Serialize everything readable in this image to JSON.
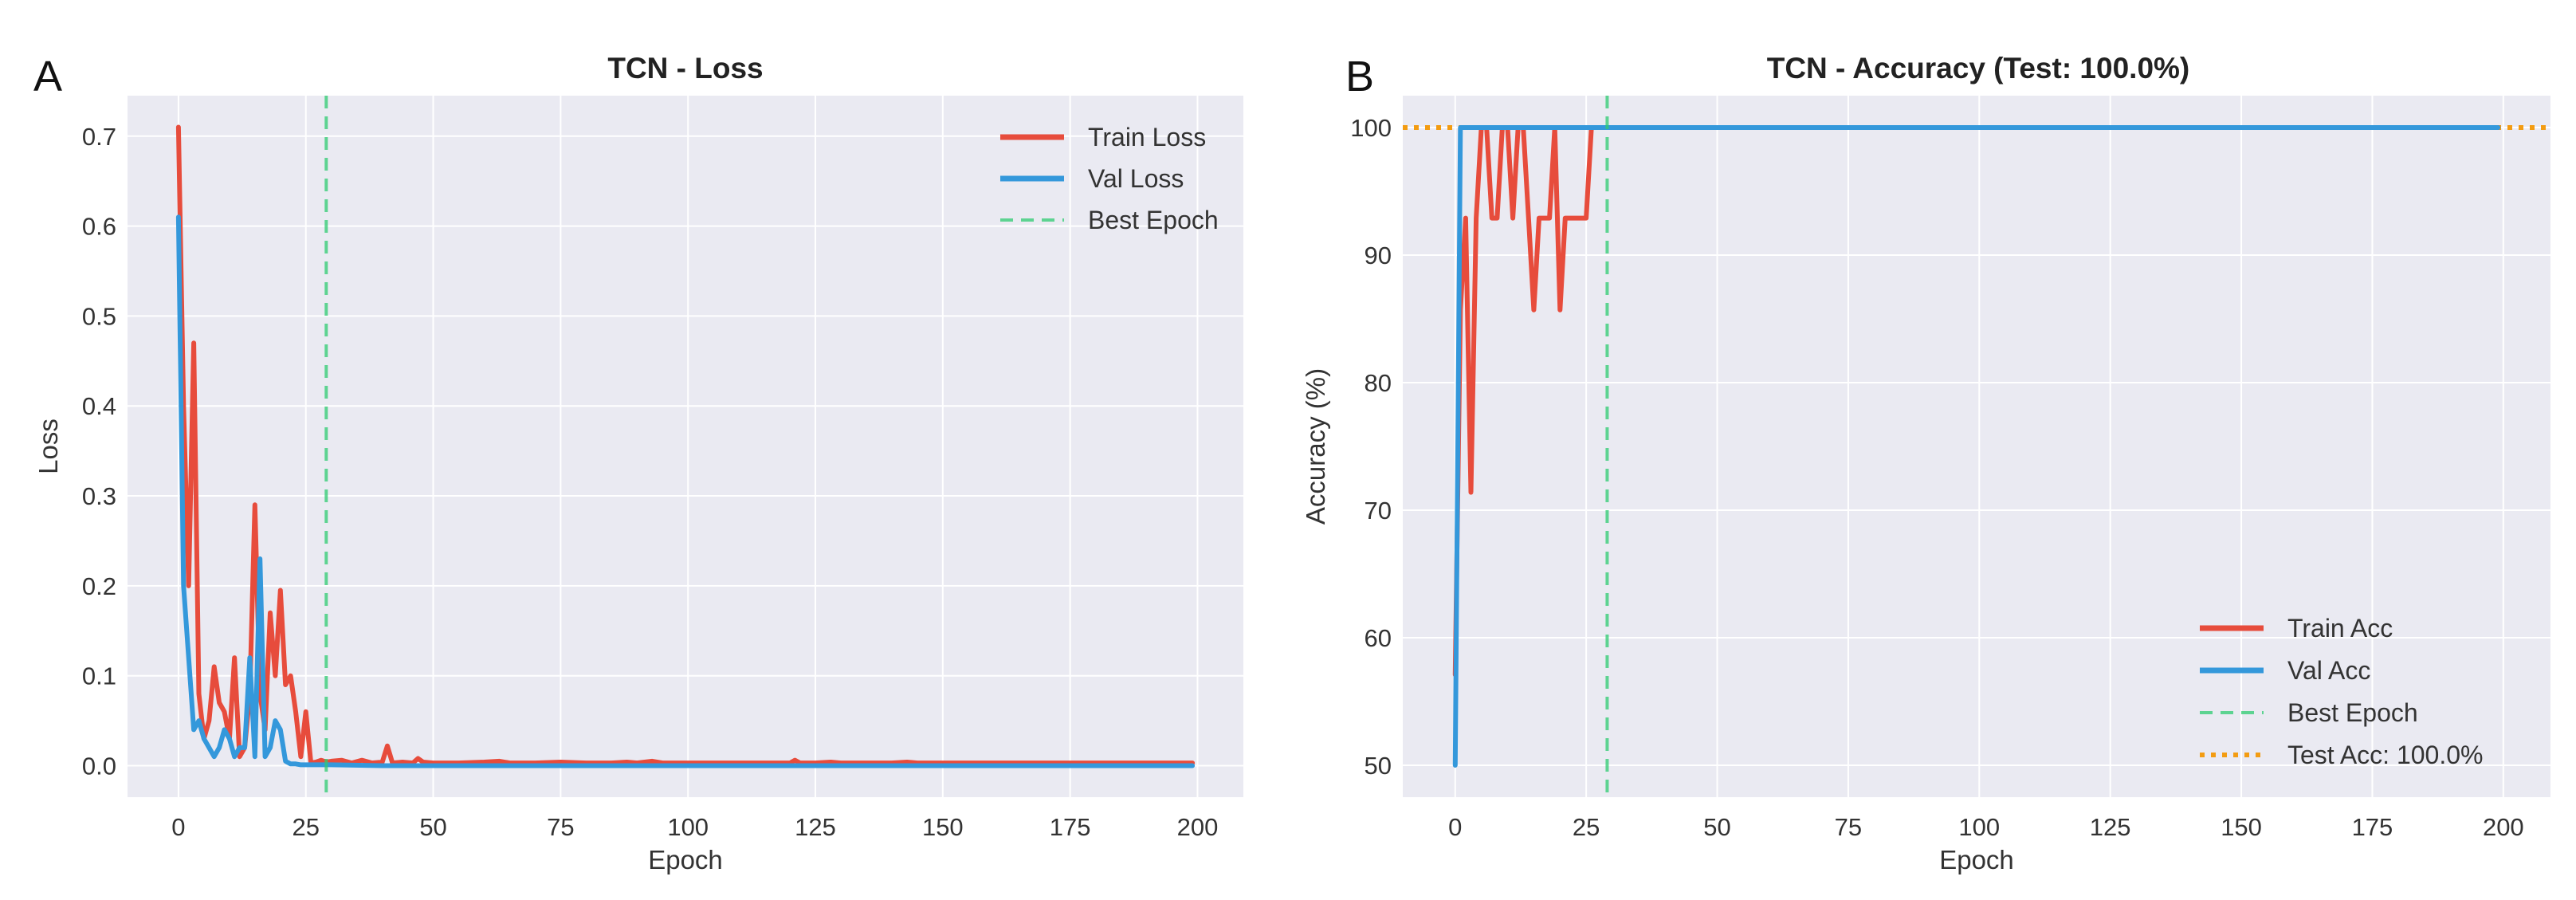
{
  "colors": {
    "train": "#e74c3c",
    "val": "#3498db",
    "best": "#2ecc71",
    "test": "#f39c12",
    "axes_bg": "#eaeaf2"
  },
  "chart_data": [
    {
      "panel": "A",
      "type": "line",
      "title": "TCN - Loss",
      "xlabel": "Epoch",
      "ylabel": "Loss",
      "xlim": [
        -10,
        209
      ],
      "ylim": [
        -0.035,
        0.745
      ],
      "xticks": [
        0,
        25,
        50,
        75,
        100,
        125,
        150,
        175,
        200
      ],
      "yticks": [
        0.0,
        0.1,
        0.2,
        0.3,
        0.4,
        0.5,
        0.6,
        0.7
      ],
      "ytick_labels": [
        "0.0",
        "0.1",
        "0.2",
        "0.3",
        "0.4",
        "0.5",
        "0.6",
        "0.7"
      ],
      "grid": true,
      "legend_position": "top-right",
      "best_epoch": 29,
      "legend": [
        "Train Loss",
        "Val Loss",
        "Best Epoch"
      ],
      "series": [
        {
          "name": "Train Loss",
          "color_key": "train",
          "x": [
            0,
            1,
            2,
            3,
            4,
            5,
            6,
            7,
            8,
            9,
            10,
            11,
            12,
            13,
            14,
            15,
            16,
            17,
            18,
            19,
            20,
            21,
            22,
            23,
            24,
            25,
            26,
            27,
            28,
            29,
            30,
            32,
            34,
            36,
            38,
            40,
            41,
            42,
            44,
            46,
            47,
            48,
            50,
            55,
            60,
            63,
            65,
            70,
            75,
            80,
            85,
            88,
            90,
            93,
            95,
            100,
            105,
            110,
            115,
            120,
            121,
            122,
            125,
            128,
            130,
            135,
            140,
            143,
            145,
            150,
            155,
            160,
            165,
            170,
            175,
            180,
            185,
            190,
            195,
            199
          ],
          "y": [
            0.71,
            0.4,
            0.2,
            0.47,
            0.08,
            0.03,
            0.05,
            0.11,
            0.07,
            0.06,
            0.03,
            0.12,
            0.01,
            0.02,
            0.08,
            0.29,
            0.08,
            0.04,
            0.17,
            0.1,
            0.195,
            0.09,
            0.1,
            0.06,
            0.01,
            0.06,
            0.003,
            0.004,
            0.006,
            0.004,
            0.005,
            0.006,
            0.003,
            0.006,
            0.003,
            0.004,
            0.022,
            0.003,
            0.004,
            0.003,
            0.008,
            0.004,
            0.003,
            0.003,
            0.004,
            0.005,
            0.003,
            0.003,
            0.004,
            0.003,
            0.003,
            0.004,
            0.003,
            0.005,
            0.003,
            0.003,
            0.003,
            0.003,
            0.003,
            0.003,
            0.006,
            0.003,
            0.003,
            0.004,
            0.003,
            0.003,
            0.003,
            0.004,
            0.003,
            0.003,
            0.003,
            0.003,
            0.003,
            0.003,
            0.003,
            0.003,
            0.003,
            0.003,
            0.003,
            0.003
          ]
        },
        {
          "name": "Val Loss",
          "color_key": "val",
          "x": [
            0,
            1,
            2,
            3,
            4,
            5,
            6,
            7,
            8,
            9,
            10,
            11,
            12,
            13,
            14,
            15,
            16,
            17,
            18,
            19,
            20,
            21,
            22,
            23,
            24,
            25,
            26,
            27,
            28,
            29,
            30,
            40,
            50,
            60,
            70,
            80,
            90,
            100,
            120,
            140,
            160,
            180,
            199
          ],
          "y": [
            0.61,
            0.2,
            0.12,
            0.04,
            0.05,
            0.03,
            0.02,
            0.01,
            0.02,
            0.04,
            0.03,
            0.01,
            0.02,
            0.02,
            0.12,
            0.01,
            0.23,
            0.01,
            0.02,
            0.05,
            0.04,
            0.005,
            0.002,
            0.002,
            0.001,
            0.001,
            0.001,
            0.001,
            0.001,
            0.001,
            0.001,
            0.0,
            0.0,
            0.0,
            0.0,
            0.0,
            0.0,
            0.0,
            0.0,
            0.0,
            0.0,
            0.0,
            0.0
          ]
        }
      ]
    },
    {
      "panel": "B",
      "type": "line",
      "title": "TCN - Accuracy (Test: 100.0%)",
      "xlabel": "Epoch",
      "ylabel": "Accuracy (%)",
      "xlim": [
        -10,
        209
      ],
      "ylim": [
        47.5,
        102.5
      ],
      "xticks": [
        0,
        25,
        50,
        75,
        100,
        125,
        150,
        175,
        200
      ],
      "yticks": [
        50,
        60,
        70,
        80,
        90,
        100
      ],
      "ytick_labels": [
        "50",
        "60",
        "70",
        "80",
        "90",
        "100"
      ],
      "grid": true,
      "legend_position": "bottom-right",
      "best_epoch": 29,
      "test_acc": 100.0,
      "legend": [
        "Train Acc",
        "Val Acc",
        "Best Epoch",
        "Test Acc: 100.0%"
      ],
      "series": [
        {
          "name": "Train Acc",
          "color_key": "train",
          "x": [
            0,
            1,
            2,
            3,
            4,
            5,
            6,
            7,
            8,
            9,
            10,
            11,
            12,
            13,
            14,
            15,
            16,
            17,
            18,
            19,
            20,
            21,
            22,
            23,
            24,
            25,
            26,
            30,
            50,
            100,
            150,
            199
          ],
          "y": [
            57.1,
            85.7,
            92.9,
            71.4,
            92.9,
            100,
            100,
            92.9,
            92.9,
            100,
            100,
            92.9,
            100,
            100,
            92.9,
            85.7,
            92.9,
            92.9,
            92.9,
            100,
            85.7,
            92.9,
            92.9,
            92.9,
            92.9,
            92.9,
            100,
            100,
            100,
            100,
            100,
            100
          ]
        },
        {
          "name": "Val Acc",
          "color_key": "val",
          "x": [
            0,
            1,
            2,
            5,
            10,
            50,
            100,
            150,
            199
          ],
          "y": [
            50,
            100,
            100,
            100,
            100,
            100,
            100,
            100,
            100
          ]
        }
      ]
    }
  ]
}
